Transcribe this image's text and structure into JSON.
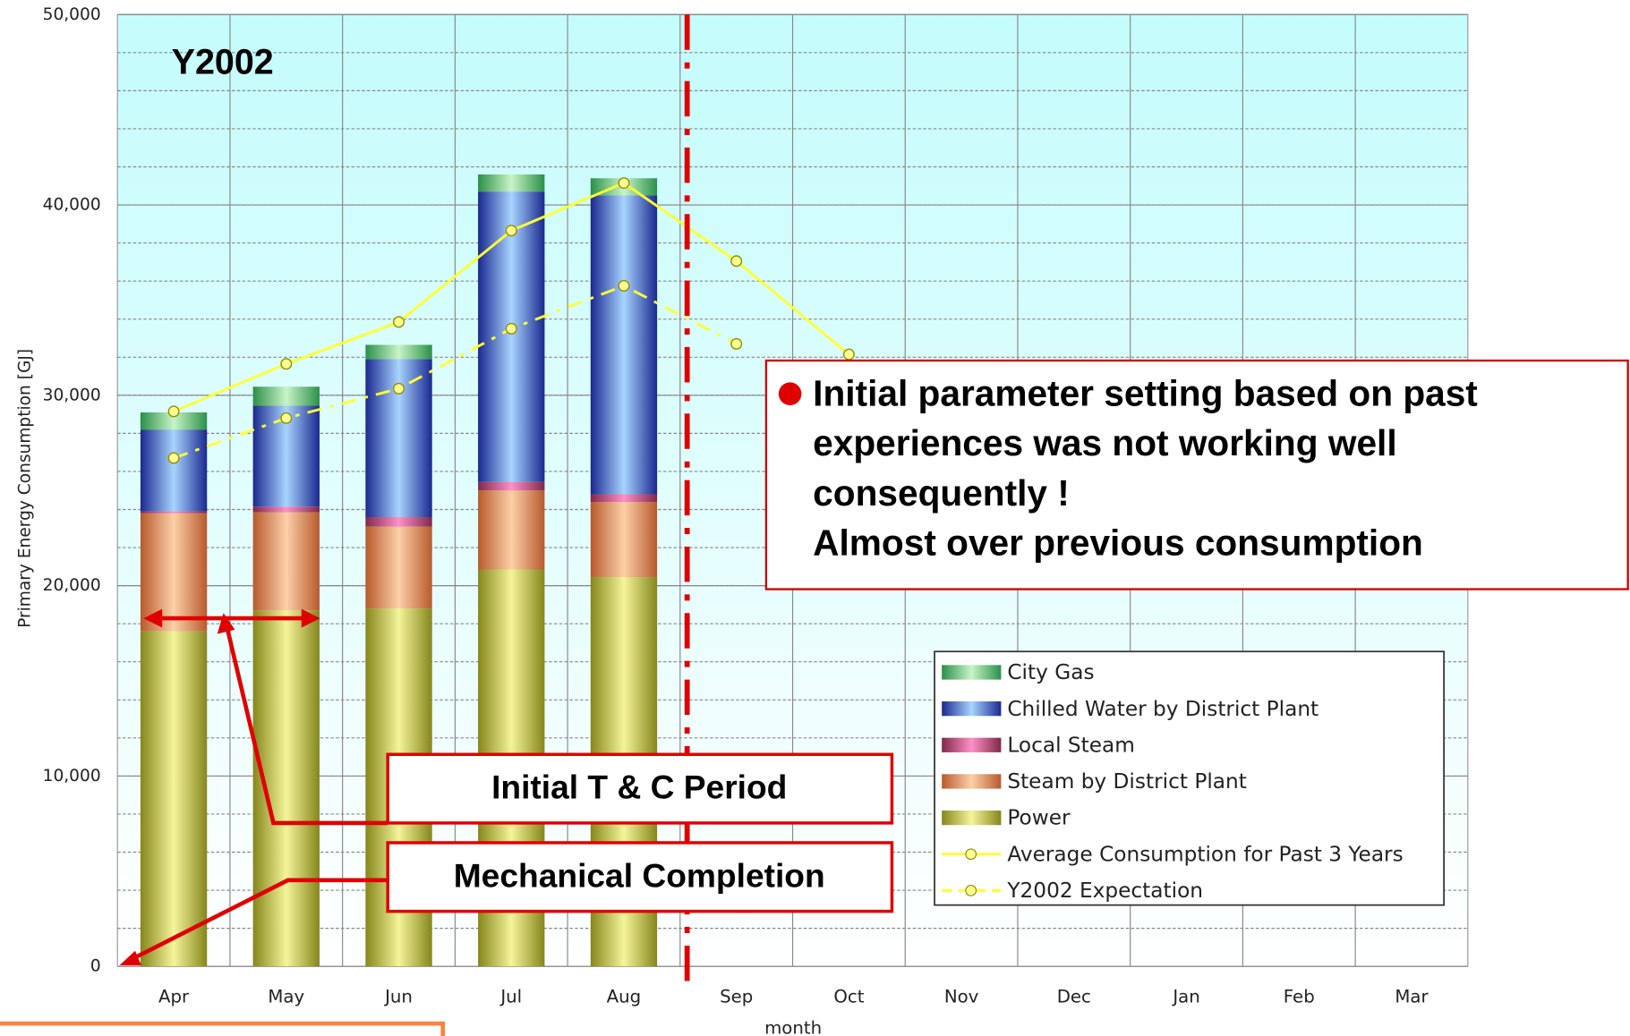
{
  "chart_data": {
    "type": "bar",
    "title": "Y2002",
    "y_label": "Primary Energy Consumption [GJ]",
    "x_label": "month",
    "categories": [
      "Apr",
      "May",
      "Jun",
      "Jul",
      "Aug",
      "Sep",
      "Oct",
      "Nov",
      "Dec",
      "Jan",
      "Feb",
      "Mar"
    ],
    "ylim": [
      0,
      50000
    ],
    "yticks": [
      {
        "value": 0,
        "label": "0"
      },
      {
        "value": 10000,
        "label": "10,000"
      },
      {
        "value": 20000,
        "label": "20,000"
      },
      {
        "value": 30000,
        "label": "30,000"
      },
      {
        "value": 40000,
        "label": "40,000"
      },
      {
        "value": 50000,
        "label": "50,000"
      }
    ],
    "grid": true,
    "minor_grid_step": 2000,
    "stacked": true,
    "series": [
      {
        "name": "Power",
        "type": "bar",
        "color": "#f4f49a",
        "edge_color": "#86861c",
        "values": [
          17600,
          18700,
          18800,
          20850,
          20450,
          null,
          null,
          null,
          null,
          null,
          null,
          null
        ]
      },
      {
        "name": "Steam by District Plant",
        "type": "bar",
        "color": "#fcd0a8",
        "edge_color": "#b85a2c",
        "values": [
          6200,
          5150,
          4300,
          4150,
          3950,
          null,
          null,
          null,
          null,
          null,
          null,
          null
        ]
      },
      {
        "name": "Local Steam",
        "type": "bar",
        "color": "#ff90c8",
        "edge_color": "#802848",
        "values": [
          100,
          300,
          500,
          450,
          400,
          null,
          null,
          null,
          null,
          null,
          null,
          null
        ]
      },
      {
        "name": "Chilled Water by District Plant",
        "type": "bar",
        "color": "#a8d4ff",
        "edge_color": "#1a2890",
        "values": [
          4300,
          5300,
          8300,
          15250,
          15700,
          null,
          null,
          null,
          null,
          null,
          null,
          null
        ]
      },
      {
        "name": "City Gas",
        "type": "bar",
        "color": "#c8f4c8",
        "edge_color": "#2a9048",
        "values": [
          900,
          1000,
          750,
          900,
          900,
          null,
          null,
          null,
          null,
          null,
          null,
          null
        ]
      },
      {
        "name": "Average Consumption for Past 3 Years",
        "type": "line",
        "dash": false,
        "color": "#ffff30",
        "values": [
          29150,
          31650,
          33850,
          38650,
          41150,
          37050,
          32150,
          null,
          null,
          null,
          null,
          null
        ]
      },
      {
        "name": "Y2002 Expectation",
        "type": "line",
        "dash": true,
        "color": "#ffff30",
        "values": [
          26700,
          28800,
          30350,
          33500,
          35750,
          32700,
          null,
          null,
          null,
          null,
          null,
          null
        ]
      }
    ],
    "legend": "lower right",
    "annotations": {
      "note": [
        "Initial parameter setting based on past",
        "experiences was not working well",
        "consequently !",
        "Almost over previous consumption"
      ],
      "period": "Initial T & C Period",
      "completion": "Mechanical Completion"
    }
  }
}
